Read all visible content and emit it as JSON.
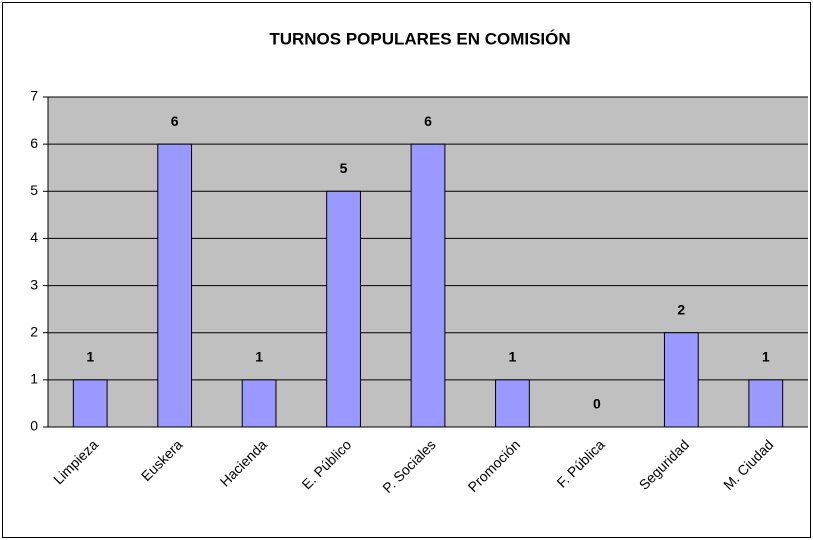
{
  "chart_data": {
    "type": "bar",
    "title": "TURNOS POPULARES EN COMISIÓN",
    "categories": [
      "Limpieza",
      "Euskera",
      "Hacienda",
      "E. Público",
      "P. Sociales",
      "Promoción",
      "F. Pública",
      "Seguridad",
      "M. Ciudad"
    ],
    "values": [
      1,
      6,
      1,
      5,
      6,
      1,
      0,
      2,
      1
    ],
    "color": "#9999ff",
    "ylim": [
      0,
      7
    ],
    "yticks": [
      0,
      1,
      2,
      3,
      4,
      5,
      6,
      7
    ],
    "grid": true
  }
}
